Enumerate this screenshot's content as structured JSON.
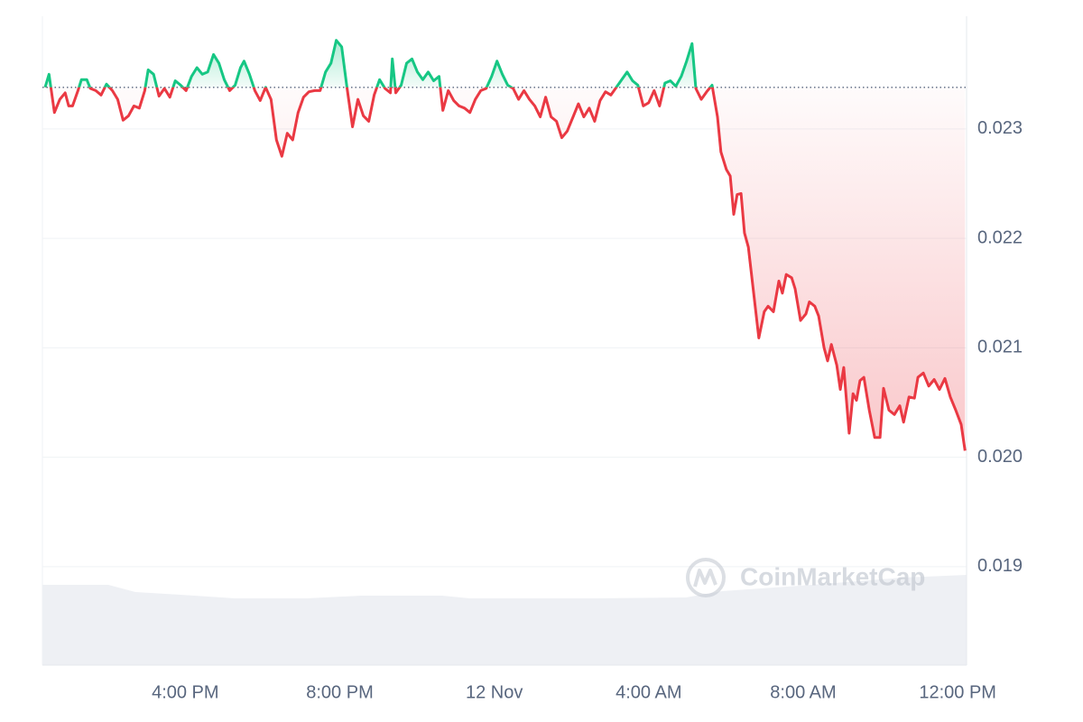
{
  "chart_data": {
    "type": "line",
    "watermark": "CoinMarketCap",
    "baseline": 0.02338,
    "up_color": "#16c784",
    "down_color": "#ea3943",
    "grid": true,
    "xlim": [
      -11.7,
      12.23
    ],
    "xticks": [
      {
        "value": -8,
        "label": "4:00 PM"
      },
      {
        "value": -4,
        "label": "8:00 PM"
      },
      {
        "value": 0,
        "label": "12 Nov"
      },
      {
        "value": 4,
        "label": "4:00 AM"
      },
      {
        "value": 8,
        "label": "8:00 AM"
      },
      {
        "value": 12,
        "label": "12:00 PM"
      }
    ],
    "ylim": [
      0.0181,
      0.02403
    ],
    "yticks": [
      0.019,
      {
        "value": 0.02,
        "label": "0.020"
      },
      0.021,
      0.022,
      0.023
    ],
    "x": [
      -11.63,
      -11.53,
      -11.39,
      -11.25,
      -11.11,
      -11.02,
      -10.92,
      -10.78,
      -10.69,
      -10.55,
      -10.46,
      -10.32,
      -10.18,
      -10.04,
      -9.89,
      -9.75,
      -9.61,
      -9.47,
      -9.33,
      -9.19,
      -9.05,
      -8.96,
      -8.82,
      -8.68,
      -8.54,
      -8.4,
      -8.26,
      -8.12,
      -7.98,
      -7.84,
      -7.7,
      -7.56,
      -7.42,
      -7.27,
      -7.13,
      -6.99,
      -6.85,
      -6.71,
      -6.57,
      -6.48,
      -6.34,
      -6.2,
      -6.06,
      -5.92,
      -5.78,
      -5.64,
      -5.5,
      -5.36,
      -5.22,
      -5.08,
      -4.94,
      -4.8,
      -4.65,
      -4.51,
      -4.37,
      -4.23,
      -4.09,
      -3.95,
      -3.81,
      -3.67,
      -3.53,
      -3.39,
      -3.25,
      -3.11,
      -2.97,
      -2.83,
      -2.69,
      -2.64,
      -2.55,
      -2.41,
      -2.27,
      -2.13,
      -1.99,
      -1.85,
      -1.71,
      -1.57,
      -1.43,
      -1.33,
      -1.19,
      -1.05,
      -0.91,
      -0.77,
      -0.63,
      -0.49,
      -0.35,
      -0.21,
      -0.07,
      0.07,
      0.21,
      0.35,
      0.49,
      0.63,
      0.77,
      0.91,
      1.05,
      1.19,
      1.33,
      1.47,
      1.61,
      1.75,
      1.89,
      2.04,
      2.18,
      2.32,
      2.46,
      2.6,
      2.74,
      2.88,
      3.02,
      3.16,
      3.3,
      3.44,
      3.58,
      3.72,
      3.86,
      4.0,
      4.14,
      4.28,
      4.42,
      4.56,
      4.7,
      4.84,
      4.98,
      5.12,
      5.22,
      5.36,
      5.5,
      5.64,
      5.78,
      5.87,
      6.01,
      6.11,
      6.2,
      6.29,
      6.39,
      6.48,
      6.58,
      6.71,
      6.85,
      6.99,
      7.09,
      7.23,
      7.37,
      7.46,
      7.56,
      7.7,
      7.79,
      7.93,
      8.07,
      8.16,
      8.3,
      8.4,
      8.54,
      8.63,
      8.73,
      8.87,
      8.96,
      9.05,
      9.19,
      9.29,
      9.38,
      9.47,
      9.57,
      9.71,
      9.85,
      9.99,
      10.08,
      10.22,
      10.36,
      10.5,
      10.6,
      10.74,
      10.88,
      10.97,
      11.11,
      11.25,
      11.39,
      11.53,
      11.67,
      11.81,
      11.95,
      12.09,
      12.19
    ],
    "values": [
      0.02338,
      0.0235,
      0.02315,
      0.02327,
      0.02333,
      0.02321,
      0.02321,
      0.02335,
      0.02345,
      0.02345,
      0.02337,
      0.02335,
      0.02331,
      0.02341,
      0.02335,
      0.02327,
      0.02308,
      0.02312,
      0.02321,
      0.02319,
      0.02335,
      0.02354,
      0.0235,
      0.0233,
      0.02337,
      0.02329,
      0.02344,
      0.0234,
      0.02335,
      0.02348,
      0.02356,
      0.0235,
      0.02352,
      0.02368,
      0.0236,
      0.02345,
      0.02335,
      0.0234,
      0.02356,
      0.02362,
      0.0235,
      0.02335,
      0.02326,
      0.02338,
      0.02327,
      0.0229,
      0.02275,
      0.02296,
      0.0229,
      0.02315,
      0.02329,
      0.02334,
      0.02335,
      0.02335,
      0.02352,
      0.0236,
      0.02381,
      0.02375,
      0.02337,
      0.02302,
      0.02327,
      0.02312,
      0.02307,
      0.02331,
      0.02345,
      0.02337,
      0.02333,
      0.02364,
      0.02333,
      0.0234,
      0.0236,
      0.02364,
      0.02352,
      0.02345,
      0.02352,
      0.02344,
      0.02348,
      0.02317,
      0.02335,
      0.02326,
      0.02321,
      0.02319,
      0.02315,
      0.02327,
      0.02335,
      0.02337,
      0.02348,
      0.02362,
      0.0235,
      0.0234,
      0.02337,
      0.02327,
      0.02335,
      0.02327,
      0.02321,
      0.02311,
      0.02329,
      0.02311,
      0.02307,
      0.02292,
      0.02298,
      0.02311,
      0.02323,
      0.02311,
      0.02319,
      0.02307,
      0.02326,
      0.02334,
      0.02331,
      0.02338,
      0.02345,
      0.02352,
      0.02344,
      0.0234,
      0.02321,
      0.02324,
      0.02335,
      0.02321,
      0.02342,
      0.02344,
      0.02339,
      0.02348,
      0.02362,
      0.02378,
      0.02337,
      0.02327,
      0.02334,
      0.0234,
      0.02311,
      0.02279,
      0.02263,
      0.02257,
      0.02222,
      0.0224,
      0.02241,
      0.02205,
      0.02192,
      0.02152,
      0.02109,
      0.02133,
      0.02138,
      0.02133,
      0.02161,
      0.0215,
      0.02167,
      0.02164,
      0.02154,
      0.02125,
      0.02131,
      0.02142,
      0.02138,
      0.02129,
      0.021,
      0.02088,
      0.02103,
      0.02084,
      0.02062,
      0.02082,
      0.02022,
      0.02058,
      0.02052,
      0.0207,
      0.02073,
      0.02043,
      0.02018,
      0.02018,
      0.02063,
      0.02043,
      0.02039,
      0.02047,
      0.02032,
      0.02055,
      0.02054,
      0.02073,
      0.02077,
      0.02065,
      0.02071,
      0.02062,
      0.02072,
      0.02055,
      0.02043,
      0.0203,
      0.02006
    ]
  }
}
